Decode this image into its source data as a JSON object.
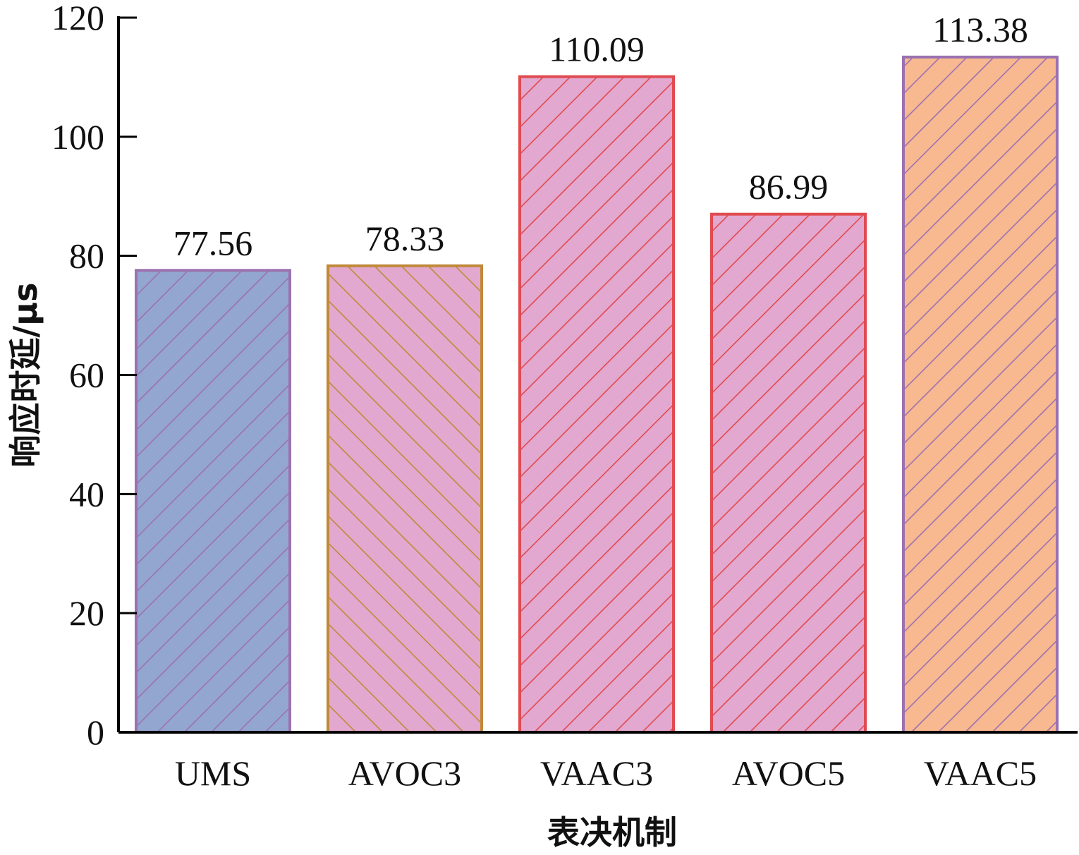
{
  "chart_data": {
    "type": "bar",
    "title": "",
    "xlabel": "表决机制",
    "ylabel": "响应时延/μs",
    "ylim": [
      0,
      120
    ],
    "yticks": [
      0,
      20,
      40,
      60,
      80,
      100,
      120
    ],
    "grid": false,
    "categories": [
      "UMS",
      "AVOC3",
      "VAAC3",
      "AVOC5",
      "VAAC5"
    ],
    "values": [
      77.56,
      78.33,
      110.09,
      86.99,
      113.38
    ],
    "data_labels": [
      "77.56",
      "78.33",
      "110.09",
      "86.99",
      "113.38"
    ],
    "bar_styles": [
      {
        "fill": "#93a6cf",
        "stroke": "#9b72b0",
        "hatch": "forward"
      },
      {
        "fill": "#e2a8cf",
        "stroke": "#c08a3a",
        "hatch": "backward"
      },
      {
        "fill": "#e2a8cf",
        "stroke": "#e04a50",
        "hatch": "forward"
      },
      {
        "fill": "#e2a8cf",
        "stroke": "#e04a50",
        "hatch": "forward"
      },
      {
        "fill": "#f8b890",
        "stroke": "#9b72b0",
        "hatch": "forward"
      }
    ]
  }
}
